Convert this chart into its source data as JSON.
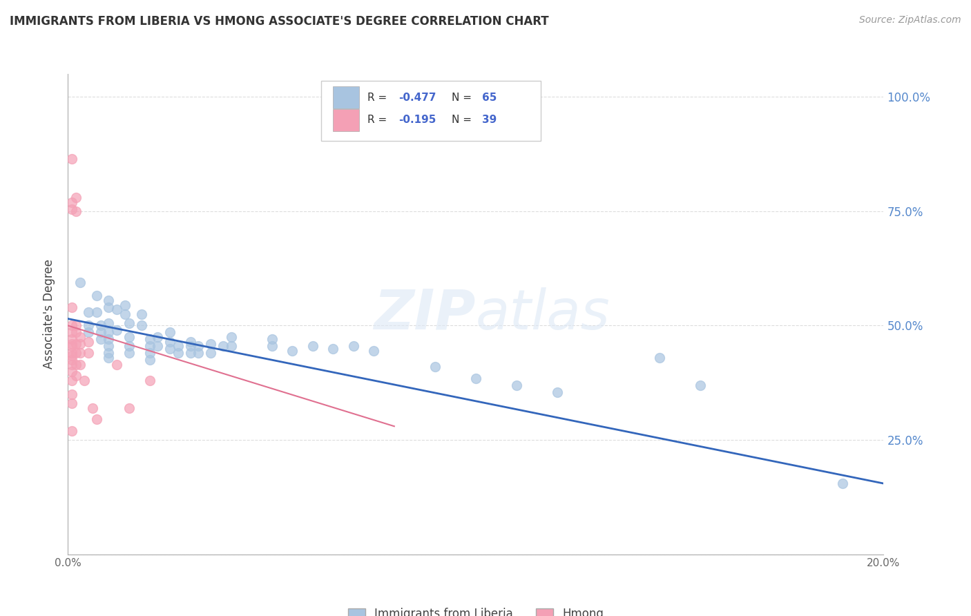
{
  "title": "IMMIGRANTS FROM LIBERIA VS HMONG ASSOCIATE'S DEGREE CORRELATION CHART",
  "source": "Source: ZipAtlas.com",
  "ylabel": "Associate's Degree",
  "watermark": "ZIPatlas",
  "x_min": 0.0,
  "x_max": 0.2,
  "y_min": 0.0,
  "y_max": 1.05,
  "y_ticks": [
    0.0,
    0.25,
    0.5,
    0.75,
    1.0
  ],
  "y_tick_labels": [
    "",
    "25.0%",
    "50.0%",
    "75.0%",
    "100.0%"
  ],
  "x_ticks": [
    0.0,
    0.04,
    0.08,
    0.12,
    0.16,
    0.2
  ],
  "x_tick_labels": [
    "0.0%",
    "",
    "",
    "",
    "",
    "20.0%"
  ],
  "blue_color": "#a8c4e0",
  "pink_color": "#f4a0b5",
  "blue_line_color": "#3366bb",
  "pink_line_color": "#e07090",
  "grid_color": "#dddddd",
  "right_axis_color": "#5588cc",
  "legend_text_color": "#333333",
  "legend_value_color": "#4466cc",
  "blue_scatter": [
    [
      0.003,
      0.595
    ],
    [
      0.005,
      0.53
    ],
    [
      0.005,
      0.5
    ],
    [
      0.005,
      0.485
    ],
    [
      0.007,
      0.565
    ],
    [
      0.007,
      0.53
    ],
    [
      0.008,
      0.5
    ],
    [
      0.008,
      0.485
    ],
    [
      0.008,
      0.47
    ],
    [
      0.01,
      0.555
    ],
    [
      0.01,
      0.54
    ],
    [
      0.01,
      0.505
    ],
    [
      0.01,
      0.485
    ],
    [
      0.01,
      0.47
    ],
    [
      0.01,
      0.455
    ],
    [
      0.01,
      0.44
    ],
    [
      0.01,
      0.43
    ],
    [
      0.012,
      0.535
    ],
    [
      0.012,
      0.49
    ],
    [
      0.014,
      0.545
    ],
    [
      0.014,
      0.525
    ],
    [
      0.015,
      0.505
    ],
    [
      0.015,
      0.475
    ],
    [
      0.015,
      0.455
    ],
    [
      0.015,
      0.44
    ],
    [
      0.018,
      0.525
    ],
    [
      0.018,
      0.5
    ],
    [
      0.02,
      0.47
    ],
    [
      0.02,
      0.455
    ],
    [
      0.02,
      0.44
    ],
    [
      0.02,
      0.425
    ],
    [
      0.022,
      0.475
    ],
    [
      0.022,
      0.455
    ],
    [
      0.025,
      0.485
    ],
    [
      0.025,
      0.465
    ],
    [
      0.025,
      0.45
    ],
    [
      0.027,
      0.455
    ],
    [
      0.027,
      0.44
    ],
    [
      0.03,
      0.465
    ],
    [
      0.03,
      0.455
    ],
    [
      0.03,
      0.44
    ],
    [
      0.032,
      0.455
    ],
    [
      0.032,
      0.44
    ],
    [
      0.035,
      0.46
    ],
    [
      0.035,
      0.44
    ],
    [
      0.038,
      0.455
    ],
    [
      0.04,
      0.475
    ],
    [
      0.04,
      0.455
    ],
    [
      0.05,
      0.47
    ],
    [
      0.05,
      0.455
    ],
    [
      0.055,
      0.445
    ],
    [
      0.06,
      0.455
    ],
    [
      0.065,
      0.45
    ],
    [
      0.07,
      0.455
    ],
    [
      0.075,
      0.445
    ],
    [
      0.09,
      0.41
    ],
    [
      0.1,
      0.385
    ],
    [
      0.11,
      0.37
    ],
    [
      0.12,
      0.355
    ],
    [
      0.145,
      0.43
    ],
    [
      0.155,
      0.37
    ],
    [
      0.19,
      0.155
    ]
  ],
  "pink_scatter": [
    [
      0.001,
      0.865
    ],
    [
      0.001,
      0.77
    ],
    [
      0.001,
      0.755
    ],
    [
      0.001,
      0.54
    ],
    [
      0.001,
      0.5
    ],
    [
      0.001,
      0.485
    ],
    [
      0.001,
      0.47
    ],
    [
      0.001,
      0.46
    ],
    [
      0.001,
      0.455
    ],
    [
      0.001,
      0.44
    ],
    [
      0.001,
      0.435
    ],
    [
      0.001,
      0.425
    ],
    [
      0.001,
      0.415
    ],
    [
      0.001,
      0.4
    ],
    [
      0.001,
      0.38
    ],
    [
      0.001,
      0.35
    ],
    [
      0.001,
      0.33
    ],
    [
      0.001,
      0.27
    ],
    [
      0.002,
      0.78
    ],
    [
      0.002,
      0.75
    ],
    [
      0.002,
      0.5
    ],
    [
      0.002,
      0.485
    ],
    [
      0.002,
      0.46
    ],
    [
      0.002,
      0.44
    ],
    [
      0.002,
      0.415
    ],
    [
      0.002,
      0.39
    ],
    [
      0.003,
      0.475
    ],
    [
      0.003,
      0.46
    ],
    [
      0.003,
      0.44
    ],
    [
      0.003,
      0.415
    ],
    [
      0.004,
      0.38
    ],
    [
      0.005,
      0.465
    ],
    [
      0.005,
      0.44
    ],
    [
      0.006,
      0.32
    ],
    [
      0.007,
      0.295
    ],
    [
      0.012,
      0.415
    ],
    [
      0.015,
      0.32
    ],
    [
      0.02,
      0.38
    ]
  ],
  "blue_trendline": [
    [
      0.0,
      0.515
    ],
    [
      0.2,
      0.155
    ]
  ],
  "pink_trendline": [
    [
      0.0,
      0.5
    ],
    [
      0.08,
      0.28
    ]
  ]
}
